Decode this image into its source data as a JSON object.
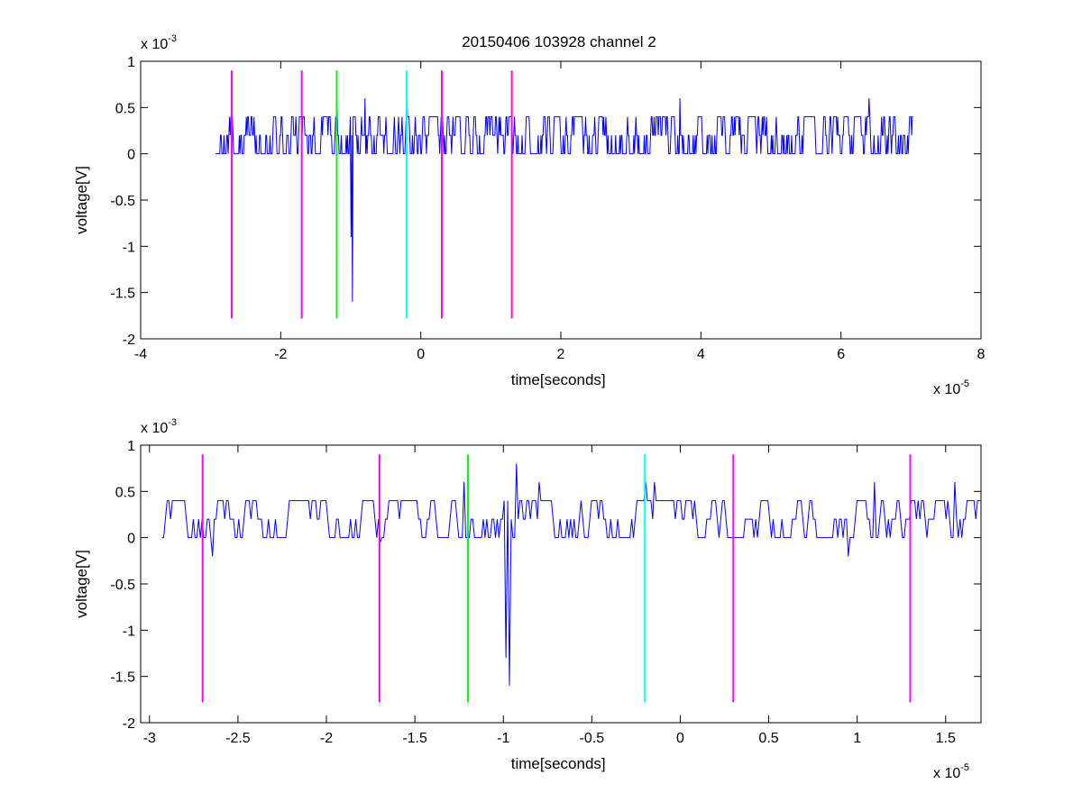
{
  "figure": {
    "title": "20150406 103928 channel 2"
  },
  "chart_data": [
    {
      "type": "line",
      "title": "20150406 103928 channel 2",
      "xlabel": "time[seconds]",
      "ylabel": "voltage[V]",
      "x_exponent_label": "x 10",
      "x_exponent": "-5",
      "y_exponent_label": "x 10",
      "y_exponent": "-3",
      "xlim": [
        -4e-05,
        8e-05
      ],
      "ylim": [
        -0.002,
        0.001
      ],
      "xticks": [
        -4e-05,
        -2e-05,
        0,
        2e-05,
        4e-05,
        6e-05,
        8e-05
      ],
      "xtick_labels": [
        "-4",
        "-2",
        "0",
        "2",
        "4",
        "6",
        "8"
      ],
      "yticks": [
        -0.002,
        -0.0015,
        -0.001,
        -0.0005,
        0,
        0.0005,
        0.001
      ],
      "ytick_labels": [
        "-2",
        "-1.5",
        "-1",
        "-0.5",
        "0",
        "0.5",
        "1"
      ],
      "signal": {
        "color": "#0000ff",
        "x_start": -2.93e-05,
        "x_end": 7.03e-05,
        "baseline_levels": [
          0,
          0.0002,
          0.0004
        ],
        "spikes": [
          {
            "x": -1.2e-05,
            "y": 0.0006
          },
          {
            "x": -1e-05,
            "y": -0.0009
          },
          {
            "x": -9.8e-06,
            "y": -0.0016
          },
          {
            "x": -8e-06,
            "y": 0.0006
          },
          {
            "x": -2e-06,
            "y": 0.0006
          },
          {
            "x": 3.7e-05,
            "y": 0.0006
          },
          {
            "x": 6.4e-05,
            "y": 0.0006
          }
        ]
      },
      "markers": [
        {
          "x": -2.7e-05,
          "color": "#ff00ff",
          "y_range": [
            -0.00178,
            0.0009
          ]
        },
        {
          "x": -1.7e-05,
          "color": "#ff00ff",
          "y_range": [
            -0.00178,
            0.0009
          ]
        },
        {
          "x": -1.2e-05,
          "color": "#00ff00",
          "y_range": [
            -0.00178,
            0.0009
          ]
        },
        {
          "x": -2e-06,
          "color": "#00ffff",
          "y_range": [
            -0.00178,
            0.0009
          ]
        },
        {
          "x": 3e-06,
          "color": "#ff00ff",
          "y_range": [
            -0.00178,
            0.0009
          ]
        },
        {
          "x": 1.3e-05,
          "color": "#ff00ff",
          "y_range": [
            -0.00178,
            0.0009
          ]
        }
      ]
    },
    {
      "type": "line",
      "title": "",
      "xlabel": "time[seconds]",
      "ylabel": "voltage[V]",
      "x_exponent_label": "x 10",
      "x_exponent": "-5",
      "y_exponent_label": "x 10",
      "y_exponent": "-3",
      "xlim": [
        -3.05e-05,
        1.7e-05
      ],
      "ylim": [
        -0.002,
        0.001
      ],
      "xticks": [
        -3e-05,
        -2.5e-05,
        -2e-05,
        -1.5e-05,
        -1e-05,
        -5e-06,
        0,
        5e-06,
        1e-05,
        1.5e-05
      ],
      "xtick_labels": [
        "-3",
        "-2.5",
        "-2",
        "-1.5",
        "-1",
        "-0.5",
        "0",
        "0.5",
        "1",
        "1.5"
      ],
      "yticks": [
        -0.002,
        -0.0015,
        -0.001,
        -0.0005,
        0,
        0.0005,
        0.001
      ],
      "ytick_labels": [
        "-2",
        "-1.5",
        "-1",
        "-0.5",
        "0",
        "0.5",
        "1"
      ],
      "signal": {
        "color": "#0000ff",
        "x_start": -2.93e-05,
        "x_end": 1.7e-05,
        "baseline_levels": [
          0,
          0.0002,
          0.0004
        ],
        "spikes": [
          {
            "x": -2.64e-05,
            "y": -0.0002
          },
          {
            "x": -1.7e-05,
            "y": -5e-05
          },
          {
            "x": -1.22e-05,
            "y": 0.0006
          },
          {
            "x": -9.9e-06,
            "y": -0.0013
          },
          {
            "x": -9.7e-06,
            "y": -0.0016
          },
          {
            "x": -9.3e-06,
            "y": 0.0008
          },
          {
            "x": -8e-06,
            "y": 0.0006
          },
          {
            "x": -2e-06,
            "y": 0.0006
          },
          {
            "x": -1.5e-06,
            "y": 0.0006
          },
          {
            "x": 9.5e-06,
            "y": -0.0002
          },
          {
            "x": 1.1e-05,
            "y": 0.0006
          },
          {
            "x": 1.55e-05,
            "y": 0.0006
          }
        ]
      },
      "markers": [
        {
          "x": -2.7e-05,
          "color": "#ff00ff",
          "y_range": [
            -0.00178,
            0.0009
          ]
        },
        {
          "x": -1.7e-05,
          "color": "#ff00ff",
          "y_range": [
            -0.00178,
            0.0009
          ]
        },
        {
          "x": -1.2e-05,
          "color": "#00ff00",
          "y_range": [
            -0.00178,
            0.0009
          ]
        },
        {
          "x": -2e-06,
          "color": "#00ffff",
          "y_range": [
            -0.00178,
            0.0009
          ]
        },
        {
          "x": 3e-06,
          "color": "#ff00ff",
          "y_range": [
            -0.00178,
            0.0009
          ]
        },
        {
          "x": 1.3e-05,
          "color": "#ff00ff",
          "y_range": [
            -0.00178,
            0.0009
          ]
        }
      ]
    }
  ]
}
